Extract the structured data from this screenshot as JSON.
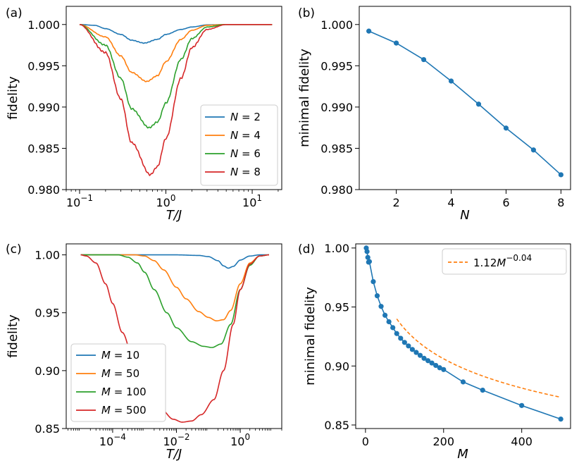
{
  "colors": {
    "blue": "#1f77b4",
    "orange": "#ff7f0e",
    "green": "#2ca02c",
    "red": "#d62728"
  },
  "chart_data": [
    {
      "panel": "(a)",
      "type": "line",
      "xscale": "log",
      "xlabel": "T/J",
      "ylabel": "fidelity",
      "xlim": [
        0.07,
        22
      ],
      "ylim": [
        0.98,
        1.0022
      ],
      "xticks": [
        {
          "v": 0.1,
          "base": "10",
          "exp": "−1"
        },
        {
          "v": 1,
          "base": "10",
          "exp": "0"
        },
        {
          "v": 10,
          "base": "10",
          "exp": "1"
        }
      ],
      "yticks": [
        {
          "v": 0.98,
          "label": "0.980"
        },
        {
          "v": 0.985,
          "label": "0.985"
        },
        {
          "v": 0.99,
          "label": "0.990"
        },
        {
          "v": 0.995,
          "label": "0.995"
        },
        {
          "v": 1.0,
          "label": "1.000"
        }
      ],
      "legend": {
        "position": "lower-right"
      },
      "series": [
        {
          "name": "N = 2",
          "var": "N",
          "val": "2",
          "color": "#1f77b4",
          "min": 0.99775,
          "center": 0.56,
          "sigma": 0.45,
          "noise": 4e-05,
          "points": [
            [
              0.1,
              1.0
            ],
            [
              0.15,
              0.9999
            ],
            [
              0.2,
              0.9995
            ],
            [
              0.3,
              0.9988
            ],
            [
              0.4,
              0.9981
            ],
            [
              0.56,
              0.99775
            ],
            [
              0.8,
              0.9982
            ],
            [
              1.0,
              0.9988
            ],
            [
              1.5,
              0.9994
            ],
            [
              2.0,
              0.9997
            ],
            [
              3.0,
              0.99995
            ],
            [
              5.0,
              1.0
            ],
            [
              17.0,
              1.0
            ]
          ]
        },
        {
          "name": "N = 4",
          "var": "N",
          "val": "4",
          "color": "#ff7f0e",
          "min": 0.9931,
          "center": 0.6,
          "sigma": 0.46,
          "noise": 5e-05,
          "points": [
            [
              0.1,
              1.0
            ],
            [
              0.2,
              0.9985
            ],
            [
              0.3,
              0.9962
            ],
            [
              0.4,
              0.9942
            ],
            [
              0.6,
              0.9931
            ],
            [
              0.8,
              0.9938
            ],
            [
              1.0,
              0.9955
            ],
            [
              1.5,
              0.9982
            ],
            [
              2.0,
              0.9993
            ],
            [
              3.0,
              0.9999
            ],
            [
              5.0,
              1.0
            ],
            [
              17.0,
              1.0
            ]
          ]
        },
        {
          "name": "N = 6",
          "var": "N",
          "val": "6",
          "color": "#2ca02c",
          "min": 0.9875,
          "center": 0.64,
          "sigma": 0.48,
          "noise": 8e-05,
          "points": [
            [
              0.1,
              1.0
            ],
            [
              0.2,
              0.9975
            ],
            [
              0.3,
              0.9935
            ],
            [
              0.4,
              0.9898
            ],
            [
              0.64,
              0.9875
            ],
            [
              0.8,
              0.9882
            ],
            [
              1.0,
              0.9905
            ],
            [
              1.5,
              0.9958
            ],
            [
              2.0,
              0.9983
            ],
            [
              3.0,
              0.9997
            ],
            [
              5.0,
              1.0
            ],
            [
              17.0,
              1.0
            ]
          ]
        },
        {
          "name": "N = 8",
          "var": "N",
          "val": "8",
          "color": "#d62728",
          "min": 0.9818,
          "center": 0.66,
          "sigma": 0.48,
          "noise": 0.0001,
          "points": [
            [
              0.1,
              1.0
            ],
            [
              0.2,
              0.9966
            ],
            [
              0.3,
              0.991
            ],
            [
              0.4,
              0.9857
            ],
            [
              0.66,
              0.9818
            ],
            [
              0.8,
              0.9828
            ],
            [
              1.0,
              0.9862
            ],
            [
              1.5,
              0.9935
            ],
            [
              2.0,
              0.9972
            ],
            [
              3.0,
              0.9994
            ],
            [
              5.0,
              1.0
            ],
            [
              17.0,
              1.0
            ]
          ]
        }
      ]
    },
    {
      "panel": "(b)",
      "type": "line",
      "markers": true,
      "xlabel": "N",
      "ylabel": "minimal fidelity",
      "xlim": [
        0.65,
        8.35
      ],
      "ylim": [
        0.98,
        1.0022
      ],
      "xticks": [
        {
          "v": 2,
          "label": "2"
        },
        {
          "v": 4,
          "label": "4"
        },
        {
          "v": 6,
          "label": "6"
        },
        {
          "v": 8,
          "label": "8"
        }
      ],
      "yticks": [
        {
          "v": 0.98,
          "label": "0.980"
        },
        {
          "v": 0.985,
          "label": "0.985"
        },
        {
          "v": 0.99,
          "label": "0.990"
        },
        {
          "v": 0.995,
          "label": "0.995"
        },
        {
          "v": 1.0,
          "label": "1.000"
        }
      ],
      "series": [
        {
          "name": "minimal fidelity",
          "color": "#1f77b4",
          "x": [
            1,
            2,
            3,
            4,
            5,
            6,
            7,
            8
          ],
          "y": [
            0.9992,
            0.99775,
            0.99575,
            0.99315,
            0.99035,
            0.98745,
            0.9848,
            0.9818
          ]
        }
      ]
    },
    {
      "panel": "(c)",
      "type": "line",
      "xscale": "log",
      "xlabel": "T/J",
      "ylabel": "fidelity",
      "xlim": [
        3.5e-06,
        20
      ],
      "ylim": [
        0.85,
        1.0095
      ],
      "xticks": [
        {
          "v": 0.0001,
          "base": "10",
          "exp": "−4"
        },
        {
          "v": 0.01,
          "base": "10",
          "exp": "−2"
        },
        {
          "v": 1,
          "base": "10",
          "exp": "0"
        }
      ],
      "yticks": [
        {
          "v": 0.85,
          "label": "0.85"
        },
        {
          "v": 0.9,
          "label": "0.90"
        },
        {
          "v": 0.95,
          "label": "0.95"
        },
        {
          "v": 1.0,
          "label": "1.00"
        }
      ],
      "legend": {
        "position": "lower-left"
      },
      "series": [
        {
          "name": "M = 10",
          "var": "M",
          "val": "10",
          "color": "#1f77b4",
          "points": [
            [
              1e-05,
              1.0
            ],
            [
              0.01,
              1.0
            ],
            [
              0.05,
              0.9995
            ],
            [
              0.1,
              0.9985
            ],
            [
              0.2,
              0.995
            ],
            [
              0.3,
              0.9905
            ],
            [
              0.42,
              0.9885
            ],
            [
              0.6,
              0.99
            ],
            [
              1.0,
              0.9955
            ],
            [
              2.0,
              0.999
            ],
            [
              4.0,
              1.0
            ],
            [
              8.0,
              1.0
            ]
          ]
        },
        {
          "name": "M = 50",
          "var": "M",
          "val": "50",
          "color": "#ff7f0e",
          "points": [
            [
              1e-05,
              1.0
            ],
            [
              0.0005,
              1.0
            ],
            [
              0.001,
              0.999
            ],
            [
              0.002,
              0.995
            ],
            [
              0.004,
              0.987
            ],
            [
              0.01,
              0.972
            ],
            [
              0.02,
              0.962
            ],
            [
              0.05,
              0.951
            ],
            [
              0.1,
              0.946
            ],
            [
              0.18,
              0.943
            ],
            [
              0.3,
              0.944
            ],
            [
              0.5,
              0.952
            ],
            [
              1.0,
              0.975
            ],
            [
              2.0,
              0.993
            ],
            [
              4.0,
              0.999
            ],
            [
              8.0,
              1.0
            ]
          ]
        },
        {
          "name": "M = 100",
          "var": "M",
          "val": "100",
          "color": "#2ca02c",
          "points": [
            [
              1e-05,
              1.0
            ],
            [
              0.00015,
              1.0
            ],
            [
              0.0003,
              0.998
            ],
            [
              0.0006,
              0.993
            ],
            [
              0.001,
              0.985
            ],
            [
              0.002,
              0.97
            ],
            [
              0.005,
              0.95
            ],
            [
              0.01,
              0.937
            ],
            [
              0.03,
              0.925
            ],
            [
              0.07,
              0.921
            ],
            [
              0.13,
              0.92
            ],
            [
              0.25,
              0.923
            ],
            [
              0.5,
              0.94
            ],
            [
              1.0,
              0.97
            ],
            [
              2.0,
              0.991
            ],
            [
              4.0,
              0.999
            ],
            [
              8.0,
              1.0
            ]
          ]
        },
        {
          "name": "M = 500",
          "var": "M",
          "val": "500",
          "color": "#d62728",
          "points": [
            [
              1e-05,
              1.0
            ],
            [
              1.5e-05,
              0.999
            ],
            [
              3e-05,
              0.993
            ],
            [
              6e-05,
              0.975
            ],
            [
              0.0001,
              0.958
            ],
            [
              0.0002,
              0.933
            ],
            [
              0.0005,
              0.905
            ],
            [
              0.001,
              0.888
            ],
            [
              0.003,
              0.868
            ],
            [
              0.008,
              0.858
            ],
            [
              0.015,
              0.8555
            ],
            [
              0.03,
              0.8565
            ],
            [
              0.06,
              0.862
            ],
            [
              0.15,
              0.875
            ],
            [
              0.3,
              0.9
            ],
            [
              0.6,
              0.94
            ],
            [
              1.0,
              0.97
            ],
            [
              2.0,
              0.992
            ],
            [
              4.0,
              0.999
            ],
            [
              8.0,
              1.0
            ]
          ]
        }
      ]
    },
    {
      "panel": "(d)",
      "type": "line",
      "markers": true,
      "xlabel": "M",
      "ylabel": "minimal fidelity",
      "xlim": [
        -25,
        525
      ],
      "ylim": [
        0.847,
        1.0035
      ],
      "xticks": [
        {
          "v": 0,
          "label": "0"
        },
        {
          "v": 200,
          "label": "200"
        },
        {
          "v": 400,
          "label": "400"
        }
      ],
      "yticks": [
        {
          "v": 0.85,
          "label": "0.85"
        },
        {
          "v": 0.9,
          "label": "0.90"
        },
        {
          "v": 0.95,
          "label": "0.95"
        },
        {
          "v": 1.0,
          "label": "1.00"
        }
      ],
      "legend": {
        "position": "top-right"
      },
      "fit": {
        "name": "1.12M^−0.04",
        "coef": "1.12",
        "var": "M",
        "exp": "−0.04",
        "a": 1.12,
        "b": -0.04,
        "x_start": 80,
        "x_end": 500,
        "color": "#ff7f0e",
        "style": "dashed"
      },
      "series": [
        {
          "name": "minimal fidelity",
          "color": "#1f77b4",
          "x": [
            2,
            4,
            6,
            8,
            10,
            20,
            30,
            40,
            50,
            60,
            70,
            80,
            90,
            100,
            110,
            120,
            130,
            140,
            150,
            160,
            170,
            180,
            190,
            200,
            250,
            300,
            400,
            500
          ],
          "y": [
            1.0,
            0.997,
            0.992,
            0.988,
            0.9885,
            0.9715,
            0.9595,
            0.9505,
            0.943,
            0.9375,
            0.9325,
            0.9275,
            0.9235,
            0.92,
            0.917,
            0.914,
            0.9115,
            0.909,
            0.9065,
            0.9045,
            0.9025,
            0.9005,
            0.8985,
            0.897,
            0.8865,
            0.8795,
            0.8665,
            0.855
          ]
        }
      ]
    }
  ]
}
